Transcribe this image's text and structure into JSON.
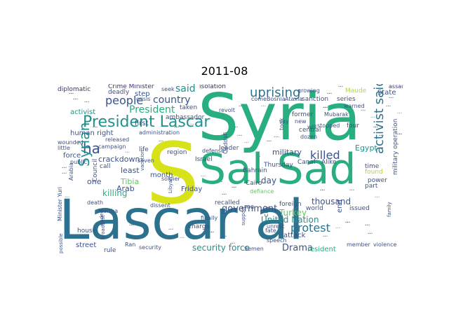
{
  "title": "2011-08",
  "palette": {
    "navy": "#472c7a",
    "indigo": "#3b528b",
    "blue": "#2c728e",
    "teal": "#21918c",
    "green": "#28ae80",
    "lime": "#5ec962",
    "olive": "#addc30",
    "yellow": "#d8e219"
  },
  "words": [
    {
      "text": "Lascar al",
      "color": "#2c728e"
    },
    {
      "text": "Syria",
      "color": "#28ae80"
    },
    {
      "text": "Sal Sad",
      "color": "#28ae80"
    },
    {
      "text": "S",
      "color": "#d8e219"
    },
    {
      "text": "President Lascar",
      "color": "#21918c"
    },
    {
      "text": "uprising",
      "color": "#2c728e"
    },
    {
      "text": "people",
      "color": "#3b528b"
    },
    {
      "text": "country",
      "color": "#3b528b"
    },
    {
      "text": "President",
      "color": "#28ae80"
    },
    {
      "text": "said",
      "color": "#21918c"
    },
    {
      "text": "ha",
      "color": "#3b528b"
    },
    {
      "text": "Syrian",
      "color": "#21918c"
    },
    {
      "text": "killed",
      "color": "#3b528b"
    },
    {
      "text": "activist said",
      "color": "#2c728e"
    },
    {
      "text": "protest",
      "color": "#2c728e"
    },
    {
      "text": "government",
      "color": "#3b528b"
    },
    {
      "text": "United Nation",
      "color": "#21918c"
    },
    {
      "text": "Drama",
      "color": "#3b528b"
    },
    {
      "text": "security force",
      "color": "#21918c"
    },
    {
      "text": "crackdown",
      "color": "#3b528b"
    },
    {
      "text": "killing",
      "color": "#28ae80"
    },
    {
      "text": "Arab",
      "color": "#3b528b"
    },
    {
      "text": "least",
      "color": "#3b528b"
    },
    {
      "text": "one",
      "color": "#3b528b"
    },
    {
      "text": "Tibia",
      "color": "#5ec962"
    },
    {
      "text": "activist",
      "color": "#21918c"
    },
    {
      "text": "human right",
      "color": "#3b528b"
    },
    {
      "text": "diplomatic",
      "color": "#472c7a"
    },
    {
      "text": "Crime Minister",
      "color": "#472c7a"
    },
    {
      "text": "isolation",
      "color": "#472c7a"
    },
    {
      "text": "assault",
      "color": "#472c7a"
    },
    {
      "text": "State",
      "color": "#3b528b"
    },
    {
      "text": "military",
      "color": "#3b528b"
    },
    {
      "text": "Egypt",
      "color": "#21918c"
    },
    {
      "text": "day",
      "color": "#3b528b"
    },
    {
      "text": "thousand",
      "color": "#3b528b"
    },
    {
      "text": "Turkey",
      "color": "#5ec962"
    },
    {
      "text": "attack",
      "color": "#3b528b"
    },
    {
      "text": "resident",
      "color": "#28ae80"
    },
    {
      "text": "first",
      "color": "#3b528b"
    },
    {
      "text": "step",
      "color": "#3b528b"
    },
    {
      "text": "Friday",
      "color": "#3b528b"
    },
    {
      "text": "month",
      "color": "#3b528b"
    },
    {
      "text": "force",
      "color": "#3b528b"
    },
    {
      "text": "ambassador",
      "color": "#3b528b"
    },
    {
      "text": "leader",
      "color": "#3b528b"
    },
    {
      "text": "Thursday",
      "color": "#3b528b"
    },
    {
      "text": "Bahrain",
      "color": "#3b528b"
    },
    {
      "text": "Cairo",
      "color": "#3b528b"
    },
    {
      "text": "defiance",
      "color": "#5ec962"
    },
    {
      "text": "recalled",
      "color": "#3b528b"
    },
    {
      "text": "foreign",
      "color": "#3b528b"
    },
    {
      "text": "world",
      "color": "#3b528b"
    },
    {
      "text": "issued",
      "color": "#3b528b"
    },
    {
      "text": "end",
      "color": "#3b528b"
    },
    {
      "text": "part",
      "color": "#3b528b"
    },
    {
      "text": "time",
      "color": "#3b528b"
    },
    {
      "text": "found",
      "color": "#addc30"
    },
    {
      "text": "power",
      "color": "#3b528b"
    },
    {
      "text": "military operation",
      "color": "#3b528b"
    },
    {
      "text": "Canal",
      "color": "#3b528b"
    },
    {
      "text": "Alike",
      "color": "#3b528b"
    },
    {
      "text": "released",
      "color": "#3b528b"
    },
    {
      "text": "campaign",
      "color": "#3b528b"
    },
    {
      "text": "life",
      "color": "#3b528b"
    },
    {
      "text": "region",
      "color": "#3b528b"
    },
    {
      "text": "defense",
      "color": "#3b528b"
    },
    {
      "text": "deadly",
      "color": "#3b528b"
    },
    {
      "text": "crisis",
      "color": "#3b528b"
    },
    {
      "text": "seek",
      "color": "#3b528b"
    },
    {
      "text": "sanction",
      "color": "#3b528b"
    },
    {
      "text": "Maude",
      "color": "#addc30"
    },
    {
      "text": "series",
      "color": "#3b528b"
    },
    {
      "text": "warned",
      "color": "#3b528b"
    },
    {
      "text": "four",
      "color": "#3b528b"
    },
    {
      "text": "central",
      "color": "#3b528b"
    },
    {
      "text": "dozen",
      "color": "#3b528b"
    },
    {
      "text": "former",
      "color": "#3b528b"
    },
    {
      "text": "say",
      "color": "#3b528b"
    },
    {
      "text": "new",
      "color": "#3b528b"
    },
    {
      "text": "took",
      "color": "#3b528b"
    },
    {
      "text": "Mubarak",
      "color": "#3b528b"
    },
    {
      "text": "will",
      "color": "#3b528b"
    },
    {
      "text": "stopped",
      "color": "#3b528b"
    },
    {
      "text": "growing",
      "color": "#3b528b"
    },
    {
      "text": "come",
      "color": "#3b528b"
    },
    {
      "text": "Bosnia",
      "color": "#3b528b"
    },
    {
      "text": "Ataxia",
      "color": "#3b528b"
    },
    {
      "text": "taken",
      "color": "#3b528b"
    },
    {
      "text": "administration",
      "color": "#3b528b"
    },
    {
      "text": "revolt",
      "color": "#3b528b"
    },
    {
      "text": "wounded",
      "color": "#3b528b"
    },
    {
      "text": "little",
      "color": "#3b528b"
    },
    {
      "text": "public",
      "color": "#3b528b"
    },
    {
      "text": "call",
      "color": "#3b528b"
    },
    {
      "text": "seven",
      "color": "#3b528b"
    },
    {
      "text": "soldier",
      "color": "#3b528b"
    },
    {
      "text": "vacation",
      "color": "#3b528b"
    },
    {
      "text": "Israel",
      "color": "#3b528b"
    },
    {
      "text": "Minister Yuri",
      "color": "#3b528b"
    },
    {
      "text": "Arabia",
      "color": "#3b528b"
    },
    {
      "text": "Council",
      "color": "#3b528b"
    },
    {
      "text": "death",
      "color": "#3b528b"
    },
    {
      "text": "Martha",
      "color": "#3b528b"
    },
    {
      "text": "house",
      "color": "#3b528b"
    },
    {
      "text": "street",
      "color": "#3b528b"
    },
    {
      "text": "rule",
      "color": "#3b528b"
    },
    {
      "text": "Ran",
      "color": "#3b528b"
    },
    {
      "text": "security",
      "color": "#3b528b"
    },
    {
      "text": "dissent",
      "color": "#3b528b"
    },
    {
      "text": "charge",
      "color": "#3b528b"
    },
    {
      "text": "finally",
      "color": "#3b528b"
    },
    {
      "text": "unrest",
      "color": "#3b528b"
    },
    {
      "text": "fate",
      "color": "#3b528b"
    },
    {
      "text": "speech",
      "color": "#3b528b"
    },
    {
      "text": "member",
      "color": "#3b528b"
    },
    {
      "text": "violence",
      "color": "#3b528b"
    },
    {
      "text": "Semen",
      "color": "#3b528b"
    },
    {
      "text": "city",
      "color": "#3b528b"
    },
    {
      "text": "Qaddafi",
      "color": "#3b528b"
    },
    {
      "text": "ma",
      "color": "#3b528b"
    },
    {
      "text": "family",
      "color": "#3b528b"
    },
    {
      "text": "possible",
      "color": "#3b528b"
    },
    {
      "text": "broadcast",
      "color": "#3b528b"
    },
    {
      "text": "ended",
      "color": "#3b528b"
    },
    {
      "text": "Libyan",
      "color": "#3b528b"
    },
    {
      "text": "support",
      "color": "#3b528b"
    }
  ]
}
